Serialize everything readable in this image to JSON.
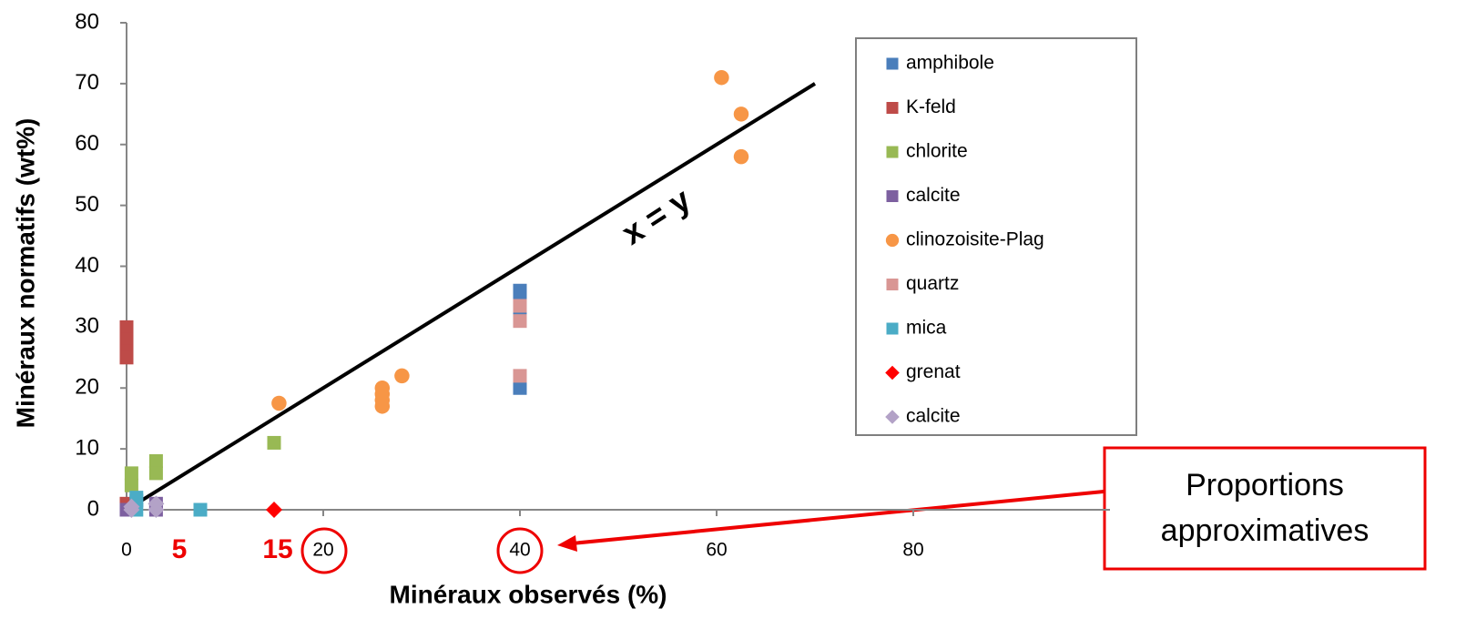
{
  "chart_data": {
    "type": "scatter",
    "xlabel": "Minéraux observés (%)",
    "ylabel": "Minéraux normatifs (wt%)",
    "xlim": [
      0,
      100
    ],
    "ylim": [
      0,
      80
    ],
    "xticks": [
      0,
      20,
      40,
      60,
      80
    ],
    "yticks": [
      0,
      10,
      20,
      30,
      40,
      50,
      60,
      70,
      80
    ],
    "grid": false,
    "legend": "upper right",
    "series": [
      {
        "name": "amphibole",
        "color": "#4a7ebb",
        "marker": "square",
        "x": [
          1,
          40,
          40,
          40,
          40
        ],
        "y": [
          1.5,
          36,
          34,
          32,
          20
        ]
      },
      {
        "name": "K-feld",
        "color": "#be4b48",
        "marker": "square",
        "x": [
          0,
          0,
          0,
          0,
          0
        ],
        "y": [
          30,
          28,
          26,
          25,
          1
        ]
      },
      {
        "name": "chlorite",
        "color": "#98b954",
        "marker": "square",
        "x": [
          0.5,
          0.5,
          3,
          3,
          15
        ],
        "y": [
          6,
          4,
          8,
          6,
          11
        ]
      },
      {
        "name": "calcite",
        "color": "#7d60a0",
        "marker": "square",
        "x": [
          0,
          3,
          3
        ],
        "y": [
          0,
          0,
          1
        ]
      },
      {
        "name": "clinozoisite-Plag",
        "color": "#f79646",
        "marker": "circle",
        "x": [
          60.5,
          62.5,
          62.5,
          15.5,
          26,
          26,
          26,
          26,
          28
        ],
        "y": [
          71,
          65,
          58,
          17.5,
          20,
          19,
          18,
          17,
          22
        ]
      },
      {
        "name": "quartz",
        "color": "#d99694",
        "marker": "square",
        "x": [
          40,
          40,
          40
        ],
        "y": [
          33.5,
          31,
          22
        ]
      },
      {
        "name": "mica",
        "color": "#4bacc6",
        "marker": "square",
        "x": [
          1,
          1,
          7.5
        ],
        "y": [
          2,
          0,
          0
        ]
      },
      {
        "name": "grenat",
        "color": "#ff0000",
        "marker": "diamond",
        "x": [
          15
        ],
        "y": [
          0
        ]
      },
      {
        "name": "calcite",
        "color": "#b3a2c7",
        "marker": "diamond",
        "x": [
          0.5,
          3,
          0.5,
          3
        ],
        "y": [
          0.5,
          1,
          0,
          0
        ]
      }
    ],
    "reference_line": {
      "x": [
        1,
        70
      ],
      "y": [
        1,
        70
      ],
      "color": "#000000",
      "label": "x = y"
    },
    "x_annotations": [
      {
        "value": 5,
        "label": "5"
      },
      {
        "value": 15,
        "label": "15"
      }
    ],
    "callout": [
      "Proportions",
      "approximatives"
    ]
  }
}
